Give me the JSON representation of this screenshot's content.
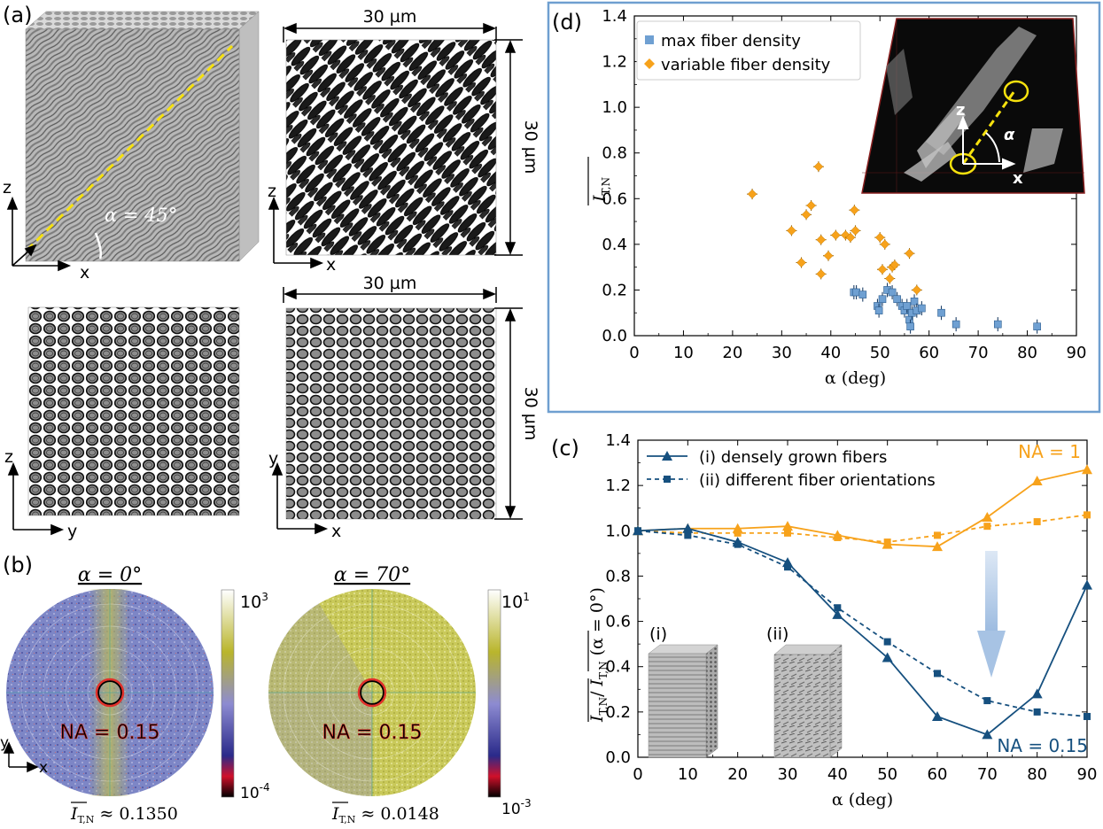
{
  "panels": {
    "a": {
      "label": "(a)",
      "alpha_label": "α = 45°",
      "dim_top": "30 µm",
      "dim_top_side": "30 µm",
      "dim_bottom": "30 µm",
      "dim_bottom_side": "30 µm",
      "axis_z": "z",
      "axis_x": "x",
      "axis_y": "y"
    },
    "b": {
      "label": "(b)",
      "left": {
        "title": "α = 0°",
        "na": "NA = 0.15",
        "result_symbol": "I",
        "result_sub": "T,N",
        "result_value": "≈ 0.1350",
        "cb_top_base": "10",
        "cb_top_exp": "3",
        "cb_bot_base": "10",
        "cb_bot_exp": "-4"
      },
      "right": {
        "title": "α = 70°",
        "na": "NA = 0.15",
        "result_symbol": "I",
        "result_sub": "T,N",
        "result_value": "≈ 0.0148",
        "cb_top_base": "10",
        "cb_top_exp": "1",
        "cb_bot_base": "10",
        "cb_bot_exp": "-3"
      },
      "axis_y": "y",
      "axis_x": "x"
    },
    "c": {
      "label": "(c)",
      "inset_i": "(i)",
      "inset_ii": "(ii)"
    },
    "d": {
      "label": "(d)",
      "inset_z": "z",
      "inset_x": "x",
      "inset_alpha": "α"
    }
  },
  "colors": {
    "orange": "#f7a21b",
    "blue": "#16507f",
    "lightblue": "#6fa0d2",
    "frame": "#6f9fd0"
  },
  "chart_data": [
    {
      "id": "d",
      "type": "scatter",
      "xlabel": "α (deg)",
      "ylabel": "I T,N",
      "xlim": [
        0,
        90
      ],
      "ylim": [
        0,
        1.4
      ],
      "xticks": [
        "0",
        "10",
        "20",
        "30",
        "40",
        "50",
        "60",
        "70",
        "80",
        "90"
      ],
      "yticks": [
        "0.0",
        "0.2",
        "0.4",
        "0.6",
        "0.8",
        "1.0",
        "1.2",
        "1.4"
      ],
      "legend": [
        "max fiber density",
        "variable fiber density"
      ],
      "series": [
        {
          "name": "max fiber density",
          "marker": "square",
          "points": [
            [
              44.7,
              0.19
            ],
            [
              45.2,
              0.19
            ],
            [
              46.5,
              0.18
            ],
            [
              49.5,
              0.13
            ],
            [
              49.8,
              0.11
            ],
            [
              50.5,
              0.16
            ],
            [
              51.5,
              0.2
            ],
            [
              52.5,
              0.19
            ],
            [
              53.5,
              0.16
            ],
            [
              54.5,
              0.13
            ],
            [
              55,
              0.11
            ],
            [
              55.5,
              0.13
            ],
            [
              56,
              0.07
            ],
            [
              56.2,
              0.04
            ],
            [
              56.5,
              0.1
            ],
            [
              57,
              0.15
            ],
            [
              57.5,
              0.11
            ],
            [
              58.5,
              0.12
            ],
            [
              62.5,
              0.1
            ],
            [
              65.5,
              0.05
            ],
            [
              74,
              0.05
            ],
            [
              82,
              0.04
            ]
          ]
        },
        {
          "name": "variable fiber density",
          "marker": "diamond",
          "points": [
            [
              24,
              0.62
            ],
            [
              32,
              0.46
            ],
            [
              34,
              0.32
            ],
            [
              35,
              0.53
            ],
            [
              36,
              0.57
            ],
            [
              37.5,
              0.74
            ],
            [
              38,
              0.42
            ],
            [
              38,
              0.27
            ],
            [
              39.5,
              0.35
            ],
            [
              41,
              0.44
            ],
            [
              43,
              0.44
            ],
            [
              44,
              0.43
            ],
            [
              44.8,
              0.55
            ],
            [
              45,
              0.46
            ],
            [
              50,
              0.43
            ],
            [
              50.5,
              0.29
            ],
            [
              51,
              0.4
            ],
            [
              52,
              0.25
            ],
            [
              52.5,
              0.3
            ],
            [
              53,
              0.31
            ],
            [
              56,
              0.36
            ],
            [
              57.5,
              0.2
            ]
          ]
        }
      ]
    },
    {
      "id": "c",
      "type": "line",
      "xlabel": "α (deg)",
      "ylabel": "I T,N / I T,N (α = 0°)",
      "xlim": [
        0,
        90
      ],
      "ylim": [
        0,
        1.4
      ],
      "xticks": [
        "0",
        "10",
        "20",
        "30",
        "40",
        "50",
        "60",
        "70",
        "80",
        "90"
      ],
      "yticks": [
        "0.0",
        "0.2",
        "0.4",
        "0.6",
        "0.8",
        "1.0",
        "1.2",
        "1.4"
      ],
      "x": [
        0,
        10,
        20,
        30,
        40,
        50,
        60,
        70,
        80,
        90
      ],
      "legend": [
        "(i)  densely grown fibers",
        "(ii) different fiber orientations"
      ],
      "annotations": [
        "NA  = 1",
        "NA  = 0.15"
      ],
      "series": [
        {
          "name": "NA = 1 (i)",
          "style": "solid",
          "color": "orange",
          "values": [
            1.0,
            1.01,
            1.01,
            1.02,
            0.98,
            0.94,
            0.93,
            1.06,
            1.22,
            1.27
          ]
        },
        {
          "name": "NA = 1 (ii)",
          "style": "dashed",
          "color": "orange",
          "values": [
            1.0,
            0.99,
            0.99,
            0.99,
            0.97,
            0.95,
            0.98,
            1.02,
            1.04,
            1.07
          ]
        },
        {
          "name": "NA = 0.15 (i)",
          "style": "solid",
          "color": "blue",
          "values": [
            1.0,
            1.01,
            0.95,
            0.86,
            0.63,
            0.44,
            0.18,
            0.1,
            0.28,
            0.76
          ]
        },
        {
          "name": "NA = 0.15 (ii)",
          "style": "dashed",
          "color": "blue",
          "values": [
            1.0,
            0.98,
            0.94,
            0.84,
            0.66,
            0.51,
            0.37,
            0.25,
            0.2,
            0.18
          ]
        }
      ]
    }
  ]
}
